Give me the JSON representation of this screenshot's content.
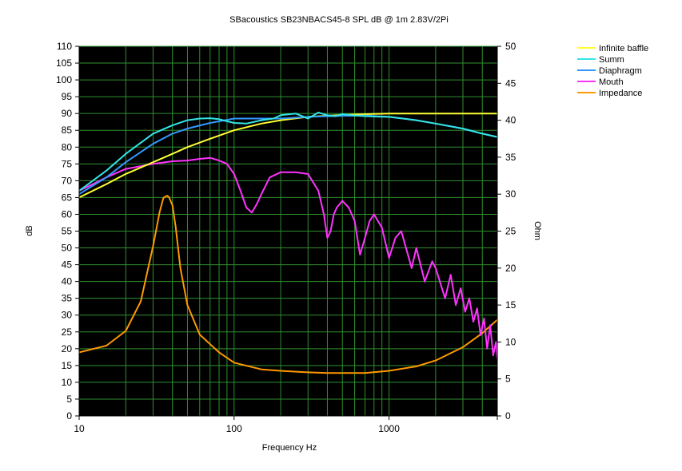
{
  "chart_data": {
    "type": "line",
    "title": "SBacoustics SB23NBACS45-8 SPL dB @ 1m 2.83V/2Pi",
    "xlabel": "Frequency Hz",
    "ylabel": "dB",
    "y2label": "Ohm",
    "xscale": "log",
    "xlim": [
      10,
      5000
    ],
    "ylim": [
      0,
      110
    ],
    "y2lim": [
      0,
      50
    ],
    "x_ticks": [
      10,
      100,
      1000
    ],
    "y_ticks": [
      0,
      5,
      10,
      15,
      20,
      25,
      30,
      35,
      40,
      45,
      50,
      55,
      60,
      65,
      70,
      75,
      80,
      85,
      90,
      95,
      100,
      105,
      110
    ],
    "y2_ticks": [
      0,
      5,
      10,
      15,
      20,
      25,
      30,
      35,
      40,
      45,
      50
    ],
    "grid": true,
    "background": "#000000",
    "grid_color": "#2f8f2f",
    "legend_position": "right",
    "series": [
      {
        "name": "Infinite baffle",
        "color": "#ffff33",
        "axis": "left",
        "x": [
          10,
          15,
          20,
          30,
          40,
          50,
          70,
          100,
          150,
          200,
          300,
          500,
          700,
          1000,
          2000,
          5000
        ],
        "y": [
          65,
          69,
          72,
          75.5,
          78,
          80,
          82.5,
          85,
          87,
          88,
          89,
          89.6,
          89.8,
          90,
          90,
          90
        ]
      },
      {
        "name": "Summ",
        "color": "#33e6e6",
        "axis": "left",
        "x": [
          10,
          15,
          20,
          30,
          40,
          50,
          60,
          70,
          80,
          90,
          100,
          120,
          150,
          180,
          200,
          250,
          300,
          350,
          400,
          450,
          500,
          600,
          700,
          800,
          1000,
          1500,
          2000,
          3000,
          4000,
          5000
        ],
        "y": [
          67,
          73,
          78,
          84,
          86.5,
          88,
          88.5,
          88.6,
          88.3,
          87.7,
          87.2,
          87,
          88,
          88.5,
          89.5,
          90,
          88.5,
          90.3,
          89.5,
          89.2,
          89.8,
          89.4,
          89.2,
          89.1,
          89,
          88,
          87,
          85.5,
          84,
          83
        ]
      },
      {
        "name": "Diaphragm",
        "color": "#3399ff",
        "axis": "left",
        "x": [
          10,
          15,
          20,
          30,
          40,
          50,
          70,
          100,
          150,
          200,
          300,
          500,
          700,
          1000,
          1500,
          2000,
          3000,
          4000,
          5000
        ],
        "y": [
          66,
          71,
          75.5,
          81,
          84,
          85.5,
          87.2,
          88.5,
          88.5,
          88.5,
          89,
          89.3,
          89.4,
          89,
          88,
          87,
          85.5,
          84,
          83
        ]
      },
      {
        "name": "Mouth",
        "color": "#ff33ff",
        "axis": "left",
        "x": [
          10,
          15,
          20,
          30,
          40,
          50,
          60,
          70,
          80,
          90,
          100,
          110,
          120,
          130,
          140,
          150,
          170,
          200,
          250,
          300,
          350,
          380,
          400,
          420,
          440,
          460,
          500,
          550,
          600,
          650,
          700,
          750,
          800,
          900,
          1000,
          1100,
          1200,
          1400,
          1500,
          1700,
          1900,
          2000,
          2300,
          2500,
          2700,
          2900,
          3100,
          3300,
          3500,
          3700,
          3900,
          4100,
          4300,
          4500,
          4700,
          4900,
          5000
        ],
        "y": [
          67,
          71,
          73.5,
          75,
          75.8,
          76,
          76.5,
          76.8,
          76,
          75,
          72,
          67,
          62,
          60.5,
          63,
          66,
          71,
          72.5,
          72.5,
          72,
          67,
          60,
          53,
          55,
          60,
          62,
          64,
          62,
          58,
          48,
          53,
          58,
          60,
          56,
          47,
          53,
          55,
          44,
          50,
          40,
          46,
          44,
          35,
          42,
          33,
          38,
          31,
          35,
          28,
          32,
          24,
          29,
          20,
          27,
          18,
          22,
          17
        ]
      },
      {
        "name": "Impedance",
        "color": "#ff9900",
        "axis": "right",
        "x": [
          10,
          15,
          20,
          25,
          30,
          33,
          35,
          37,
          38,
          40,
          42,
          45,
          50,
          60,
          70,
          80,
          100,
          150,
          200,
          300,
          400,
          500,
          700,
          1000,
          1500,
          2000,
          3000,
          4000,
          5000
        ],
        "y": [
          8.6,
          9.5,
          11.5,
          15.5,
          23,
          27.5,
          29.5,
          29.8,
          29.6,
          28.5,
          25.5,
          20,
          15,
          11,
          9.7,
          8.6,
          7.2,
          6.3,
          6.1,
          5.9,
          5.8,
          5.8,
          5.8,
          6.1,
          6.7,
          7.5,
          9.3,
          11.2,
          13
        ]
      }
    ]
  }
}
